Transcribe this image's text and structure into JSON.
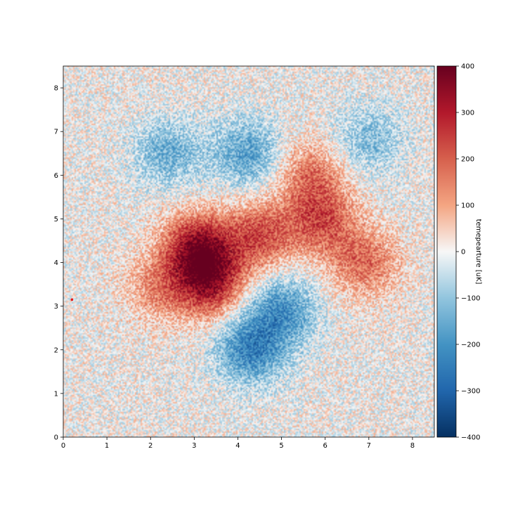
{
  "chart_data": {
    "type": "heatmap",
    "title": "",
    "xlabel": "",
    "ylabel": "",
    "xlim": [
      0,
      8.5
    ],
    "ylim": [
      0,
      8.5
    ],
    "xticks": [
      "0",
      "1",
      "2",
      "3",
      "4",
      "5",
      "6",
      "7",
      "8"
    ],
    "yticks": [
      "0",
      "1",
      "2",
      "3",
      "4",
      "5",
      "6",
      "7",
      "8"
    ],
    "colormap": "RdBu_r",
    "colorbar": {
      "label": "temepearture [uK]",
      "range": [
        -400,
        400
      ],
      "ticks": [
        "400",
        "300",
        "200",
        "100",
        "0",
        "−100",
        "−200",
        "−300",
        "−400"
      ]
    },
    "grid": false,
    "features": [
      {
        "kind": "hot",
        "x": 3.1,
        "y": 4.35,
        "amplitude": 330
      },
      {
        "kind": "hot",
        "x": 3.35,
        "y": 3.55,
        "amplitude": 300
      },
      {
        "kind": "hot",
        "x": 4.5,
        "y": 4.6,
        "amplitude": 220
      },
      {
        "kind": "hot",
        "x": 5.9,
        "y": 4.95,
        "amplitude": 210
      },
      {
        "kind": "hot",
        "x": 6.9,
        "y": 4.0,
        "amplitude": 180
      },
      {
        "kind": "hot",
        "x": 5.7,
        "y": 6.0,
        "amplitude": 160
      },
      {
        "kind": "hot",
        "x": 2.2,
        "y": 3.4,
        "amplitude": 130
      },
      {
        "kind": "cold",
        "x": 4.3,
        "y": 2.0,
        "amplitude": -230
      },
      {
        "kind": "cold",
        "x": 5.0,
        "y": 2.9,
        "amplitude": -200
      },
      {
        "kind": "cold",
        "x": 4.2,
        "y": 6.5,
        "amplitude": -170
      },
      {
        "kind": "cold",
        "x": 2.4,
        "y": 6.5,
        "amplitude": -140
      },
      {
        "kind": "cold",
        "x": 7.0,
        "y": 6.8,
        "amplitude": -120
      },
      {
        "kind": "point-source",
        "x": 0.2,
        "y": 3.15,
        "amplitude": 400
      }
    ],
    "colors": {
      "cold_extreme": "#053061",
      "neutral": "#f7f7f7",
      "hot_extreme": "#67001f"
    }
  }
}
